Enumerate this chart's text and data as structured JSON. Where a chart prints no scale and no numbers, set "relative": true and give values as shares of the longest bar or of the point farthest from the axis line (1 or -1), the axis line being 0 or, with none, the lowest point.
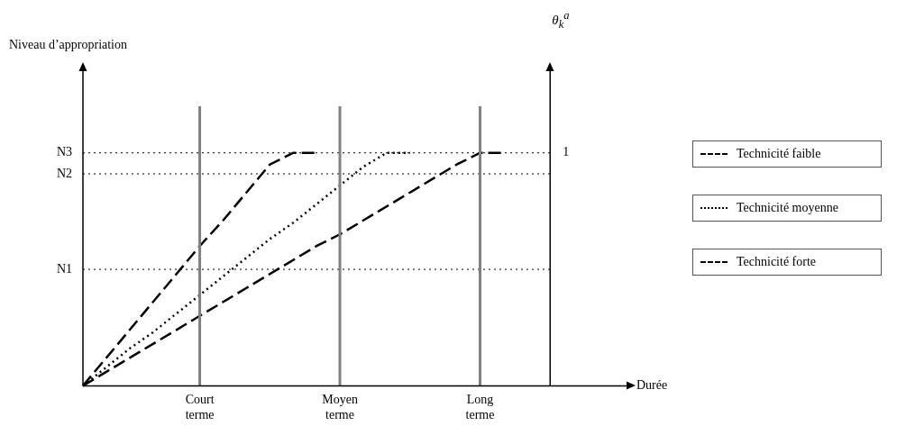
{
  "chart_data": {
    "type": "line",
    "relative": true,
    "xlabel": "Durée",
    "annotations": [
      "Niveau d’appropriation",
      "θ$_{k}$$^{a}$",
      "1"
    ],
    "categories": [
      null,
      null,
      null,
      null,
      null,
      "Court terme",
      null,
      null,
      null,
      null,
      null,
      "Moyen terme",
      null,
      null,
      null,
      null,
      null,
      "Long terme",
      null,
      null,
      null,
      null,
      null,
      null
    ],
    "series": [
      {
        "name": "Technicité faible",
        "color": "#000000",
        "line_style": "dashed",
        "values": [
          0,
          0.12,
          0.24,
          0.36,
          0.48,
          0.6,
          0.71,
          0.83,
          0.95,
          1,
          1,
          null,
          null,
          null,
          null,
          null,
          null,
          null,
          null,
          null,
          null,
          null,
          null,
          null
        ]
      },
      {
        "name": "Technicité moyenne",
        "color": "#000000",
        "line_style": "dotted",
        "values": [
          0,
          0.08,
          0.16,
          0.23,
          0.31,
          0.39,
          0.47,
          0.55,
          0.63,
          0.7,
          0.78,
          0.86,
          0.94,
          1,
          1,
          null,
          null,
          null,
          null,
          null,
          null,
          null,
          null,
          null
        ]
      },
      {
        "name": "Technicité forte",
        "color": "#000000",
        "line_style": "dashed",
        "values": [
          0,
          0.06,
          0.12,
          0.18,
          0.24,
          0.3,
          0.36,
          0.42,
          0.48,
          0.54,
          0.6,
          0.65,
          0.71,
          0.77,
          0.83,
          0.89,
          0.95,
          1,
          1,
          null,
          null,
          null,
          null,
          null
        ]
      }
    ],
    "ref_lines": [
      {
        "axis": "y",
        "value": 0.5,
        "label": "N1",
        "line_style": "dotted",
        "color": "#000000"
      },
      {
        "axis": "y",
        "value": 0.91,
        "label": "N2",
        "line_style": "dotted",
        "color": "#000000"
      },
      {
        "axis": "y",
        "value": 1,
        "label": "N3",
        "line_style": "dotted",
        "color": "#000000"
      },
      {
        "axis": "x",
        "value": "Court terme",
        "color": "#808080"
      },
      {
        "axis": "x",
        "value": "Moyen terme",
        "color": "#808080"
      },
      {
        "axis": "x",
        "value": "Long terme",
        "color": "#808080"
      }
    ],
    "grid": false,
    "marker": "none",
    "legend": "right"
  }
}
